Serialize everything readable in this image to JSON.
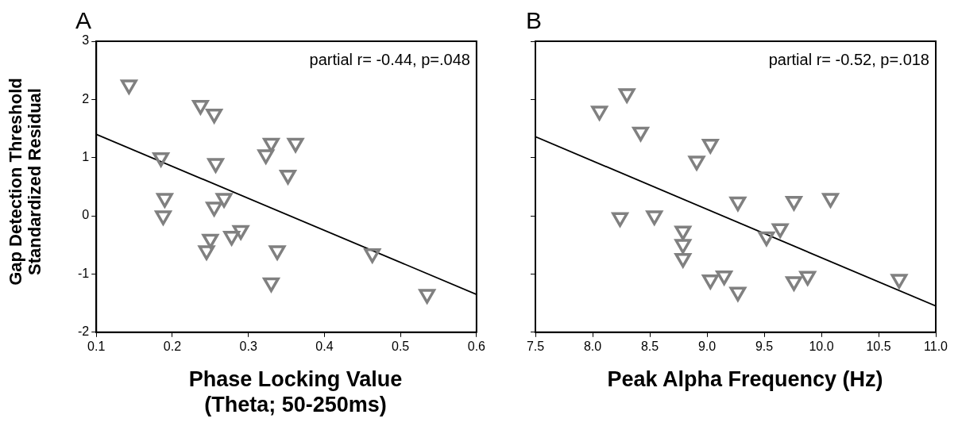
{
  "chart_data": [
    {
      "type": "scatter",
      "title": "A",
      "xlabel": "Phase Locking Value (Theta; 50-250ms)",
      "ylabel": "Gap Detection Threshold Standardized Residual",
      "annotations": [
        "partial r= -0.44, p=.048"
      ],
      "marker": "triangle",
      "grid": false,
      "xlim": [
        0.1,
        0.6
      ],
      "xticks": [
        0.1,
        0.2,
        0.3,
        0.4,
        0.5,
        0.6
      ],
      "ylim": [
        -2,
        3
      ],
      "yticks": [
        -2,
        -1,
        0,
        1,
        2,
        3
      ],
      "series": [
        {
          "type": "scatter",
          "color": "#808080",
          "x": [
            0.143,
            0.185,
            0.19,
            0.188,
            0.237,
            0.255,
            0.257,
            0.255,
            0.265,
            0.268,
            0.25,
            0.245,
            0.278,
            0.29,
            0.323,
            0.33,
            0.362,
            0.352,
            0.338,
            0.33,
            0.463,
            0.535
          ],
          "values": [
            2.25,
            1.0,
            0.3,
            0.0,
            1.9,
            1.75,
            0.9,
            0.15,
            null,
            0.3,
            -0.4,
            -0.6,
            -0.35,
            -0.25,
            1.05,
            1.25,
            1.25,
            0.7,
            -0.6,
            -1.15,
            -0.65,
            -1.35
          ]
        },
        {
          "type": "line",
          "color": "#000000",
          "marker": "none",
          "x": [
            0.1,
            0.6
          ],
          "values": [
            1.4,
            -1.35
          ]
        }
      ]
    },
    {
      "type": "scatter",
      "title": "B",
      "xlabel": "Peak Alpha Frequency (Hz)",
      "annotations": [
        "partial r= -0.52, p=.018"
      ],
      "marker": "triangle",
      "grid": false,
      "tick_labels": "x",
      "xlim": [
        7.5,
        11.0
      ],
      "xticks": [
        {
          "value": 7.5,
          "label": "7.5"
        },
        {
          "value": 8,
          "label": "8.0"
        },
        {
          "value": 8.5,
          "label": "8.5"
        },
        {
          "value": 9,
          "label": "9.0"
        },
        {
          "value": 9.5,
          "label": "9.5"
        },
        {
          "value": 10,
          "label": "10.0"
        },
        {
          "value": 10.5,
          "label": "10.5"
        },
        {
          "value": 11,
          "label": "11.0"
        }
      ],
      "ylim": [
        -2,
        3
      ],
      "yticks": [
        -2,
        -1,
        0,
        1,
        2,
        3
      ],
      "series": [
        {
          "type": "scatter",
          "color": "#808080",
          "x": [
            8.06,
            8.3,
            8.42,
            9.03,
            8.91,
            9.27,
            9.76,
            10.08,
            8.24,
            8.54,
            8.79,
            8.79,
            8.79,
            9.52,
            9.64,
            9.03,
            9.15,
            9.27,
            9.76,
            9.88,
            10.68
          ],
          "values": [
            1.8,
            2.1,
            1.44,
            1.23,
            0.94,
            0.24,
            0.25,
            0.3,
            -0.03,
            0.0,
            -0.26,
            -0.49,
            -0.73,
            -0.36,
            -0.22,
            -1.1,
            -1.03,
            -1.31,
            -1.13,
            -1.04,
            -1.09
          ]
        },
        {
          "type": "line",
          "color": "#000000",
          "marker": "none",
          "x": [
            7.5,
            11.0
          ],
          "values": [
            1.36,
            -1.55
          ]
        }
      ]
    }
  ]
}
